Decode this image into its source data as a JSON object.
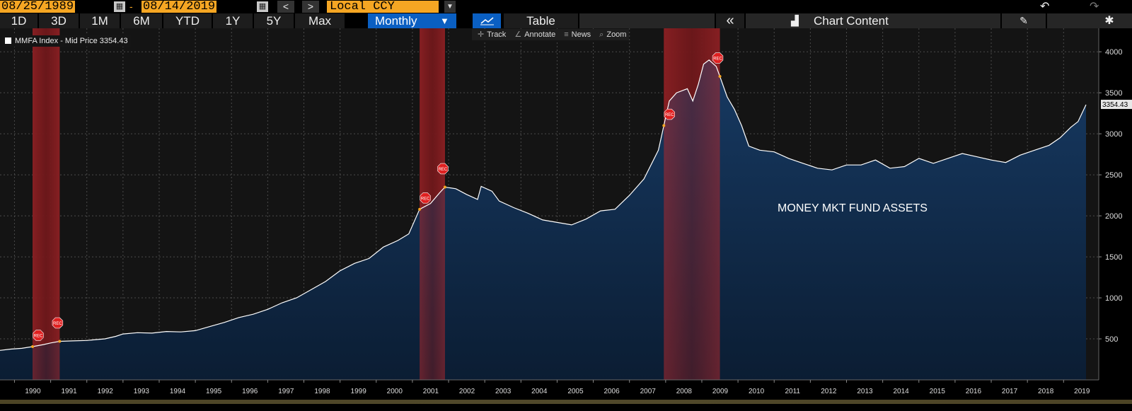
{
  "toolbar": {
    "start_date": "08/25/1989",
    "end_date": "08/14/2019",
    "date_separator": "-",
    "prev_label": "<",
    "next_label": ">",
    "currency": "Local CCY",
    "ranges": [
      "1D",
      "3D",
      "1M",
      "6M",
      "YTD",
      "1Y",
      "5Y",
      "Max"
    ],
    "frequency": "Monthly",
    "table_label": "Table",
    "collapse_label": "«",
    "chart_content_label": "Chart Content"
  },
  "chart_tools": [
    "Track",
    "Annotate",
    "News",
    "Zoom"
  ],
  "colors": {
    "accent": "#f5a623",
    "selected": "#0a5fc2",
    "area_top": "#173a63",
    "area_bottom": "#0b1d33",
    "recession": "#b0282c",
    "line": "#ffffff"
  },
  "chart_data": {
    "type": "area",
    "legend": "MMFA Index - Mid Price 3354.43",
    "last_value_label": "3354.43",
    "annotation": "MONEY MKT FUND ASSETS",
    "recession_marker": "REC",
    "x_range": [
      1989.6,
      2019.62
    ],
    "ylim": [
      0,
      4200
    ],
    "y_ticks": [
      500,
      1000,
      1500,
      2000,
      2500,
      3000,
      3500,
      4000
    ],
    "x_ticks": [
      1990,
      1991,
      1992,
      1993,
      1994,
      1995,
      1996,
      1997,
      1998,
      1999,
      2000,
      2001,
      2002,
      2003,
      2004,
      2005,
      2006,
      2007,
      2008,
      2009,
      2010,
      2011,
      2012,
      2013,
      2014,
      2015,
      2016,
      2017,
      2018,
      2019
    ],
    "grid": true,
    "legend_position": "top-left",
    "recessions": [
      [
        1990.5,
        1991.25
      ],
      [
        2001.2,
        2001.9
      ],
      [
        2007.95,
        2009.5
      ]
    ],
    "series": [
      {
        "points": [
          [
            1989.6,
            360
          ],
          [
            1989.9,
            375
          ],
          [
            1990.2,
            385
          ],
          [
            1990.5,
            405
          ],
          [
            1990.8,
            430
          ],
          [
            1991.0,
            450
          ],
          [
            1991.25,
            470
          ],
          [
            1991.6,
            475
          ],
          [
            1992.0,
            480
          ],
          [
            1992.5,
            500
          ],
          [
            1992.8,
            530
          ],
          [
            1993.0,
            560
          ],
          [
            1993.4,
            575
          ],
          [
            1993.8,
            570
          ],
          [
            1994.2,
            590
          ],
          [
            1994.6,
            585
          ],
          [
            1995.0,
            600
          ],
          [
            1995.4,
            650
          ],
          [
            1995.8,
            700
          ],
          [
            1996.2,
            760
          ],
          [
            1996.6,
            800
          ],
          [
            1997.0,
            860
          ],
          [
            1997.4,
            940
          ],
          [
            1997.8,
            1000
          ],
          [
            1998.2,
            1100
          ],
          [
            1998.6,
            1200
          ],
          [
            1999.0,
            1330
          ],
          [
            1999.4,
            1420
          ],
          [
            1999.8,
            1480
          ],
          [
            2000.2,
            1620
          ],
          [
            2000.6,
            1700
          ],
          [
            2000.9,
            1780
          ],
          [
            2001.2,
            2080
          ],
          [
            2001.5,
            2150
          ],
          [
            2001.75,
            2280
          ],
          [
            2001.9,
            2350
          ],
          [
            2002.2,
            2330
          ],
          [
            2002.5,
            2260
          ],
          [
            2002.8,
            2200
          ],
          [
            2002.9,
            2360
          ],
          [
            2003.2,
            2300
          ],
          [
            2003.4,
            2180
          ],
          [
            2003.8,
            2100
          ],
          [
            2004.2,
            2030
          ],
          [
            2004.6,
            1950
          ],
          [
            2005.0,
            1920
          ],
          [
            2005.4,
            1890
          ],
          [
            2005.8,
            1960
          ],
          [
            2006.2,
            2060
          ],
          [
            2006.6,
            2080
          ],
          [
            2007.0,
            2250
          ],
          [
            2007.4,
            2450
          ],
          [
            2007.8,
            2800
          ],
          [
            2007.95,
            3100
          ],
          [
            2008.1,
            3400
          ],
          [
            2008.3,
            3500
          ],
          [
            2008.6,
            3550
          ],
          [
            2008.75,
            3400
          ],
          [
            2008.9,
            3600
          ],
          [
            2009.05,
            3850
          ],
          [
            2009.2,
            3900
          ],
          [
            2009.4,
            3820
          ],
          [
            2009.5,
            3700
          ],
          [
            2009.7,
            3450
          ],
          [
            2009.9,
            3300
          ],
          [
            2010.1,
            3100
          ],
          [
            2010.3,
            2850
          ],
          [
            2010.6,
            2800
          ],
          [
            2011.0,
            2780
          ],
          [
            2011.4,
            2700
          ],
          [
            2011.8,
            2640
          ],
          [
            2012.2,
            2580
          ],
          [
            2012.6,
            2560
          ],
          [
            2013.0,
            2620
          ],
          [
            2013.4,
            2620
          ],
          [
            2013.8,
            2680
          ],
          [
            2014.2,
            2580
          ],
          [
            2014.6,
            2600
          ],
          [
            2015.0,
            2700
          ],
          [
            2015.4,
            2640
          ],
          [
            2015.8,
            2700
          ],
          [
            2016.2,
            2760
          ],
          [
            2016.6,
            2720
          ],
          [
            2017.0,
            2680
          ],
          [
            2017.4,
            2650
          ],
          [
            2017.8,
            2740
          ],
          [
            2018.2,
            2800
          ],
          [
            2018.6,
            2860
          ],
          [
            2018.9,
            2950
          ],
          [
            2019.2,
            3080
          ],
          [
            2019.4,
            3150
          ],
          [
            2019.62,
            3354.43
          ]
        ]
      }
    ]
  }
}
